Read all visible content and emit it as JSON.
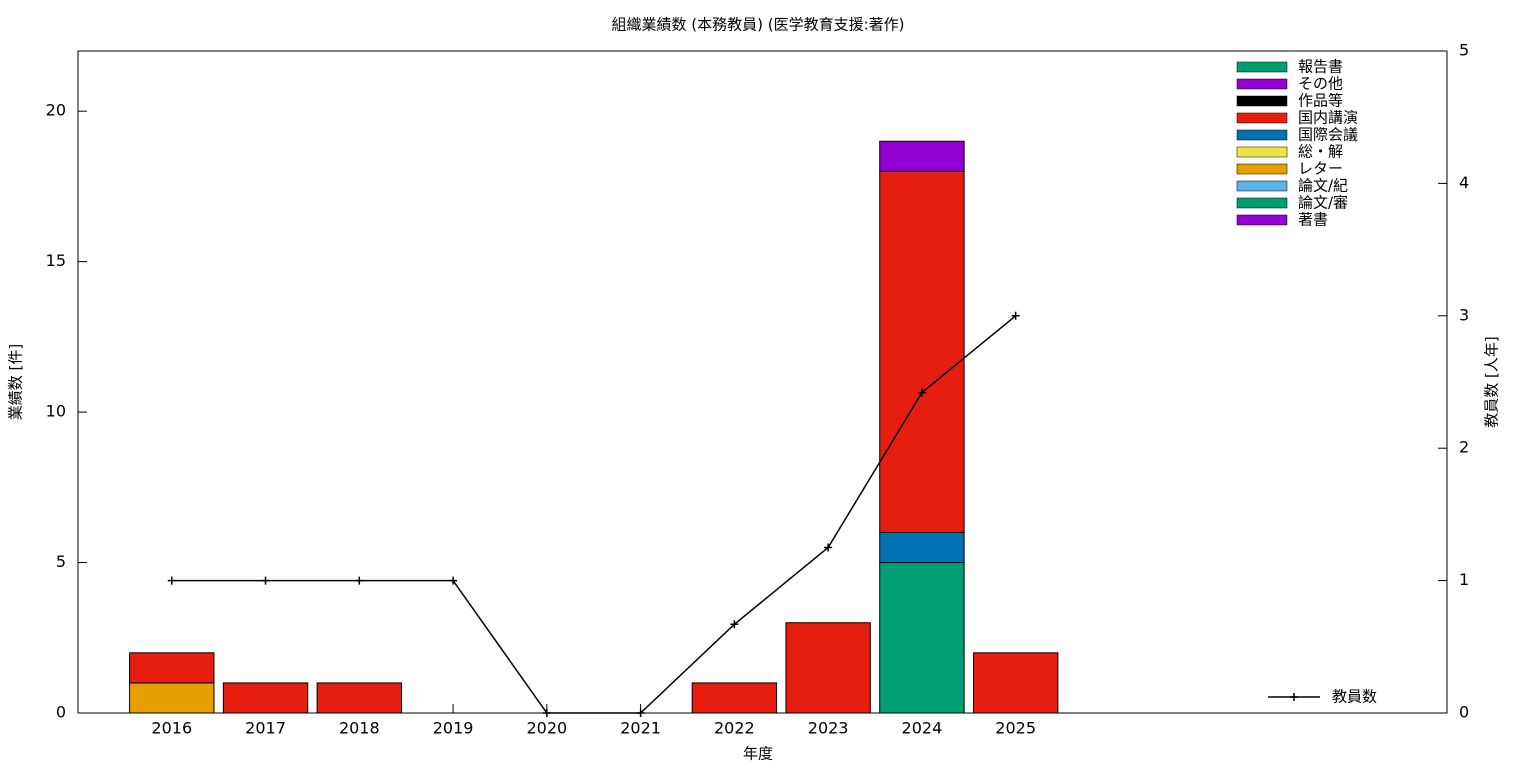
{
  "chart_data": {
    "type": "bar",
    "title": "組織業績数 (本務教員) (医学教育支援:著作)",
    "x_label": "年度",
    "y_label": "業績数 [件]",
    "y2_label": "教員数 [人年]",
    "x": [
      2016,
      2017,
      2018,
      2019,
      2020,
      2021,
      2022,
      2023,
      2024,
      2025
    ],
    "xlim": [
      2015,
      2029.6
    ],
    "xticks": [
      2016,
      2017,
      2018,
      2019,
      2020,
      2021,
      2022,
      2023,
      2024,
      2025
    ],
    "ylim": [
      0,
      22
    ],
    "yticks": [
      0,
      5,
      10,
      15,
      20
    ],
    "y2lim": [
      0,
      5
    ],
    "y2ticks": [
      0,
      1,
      2,
      3,
      4,
      5
    ],
    "legend": "upper right",
    "series": [
      {
        "name": "著書",
        "color": "#9400d3",
        "values": [
          0,
          0,
          0,
          0,
          0,
          0,
          0,
          0,
          0,
          0
        ]
      },
      {
        "name": "論文/審",
        "color": "#009e73",
        "values": [
          0,
          0,
          0,
          0,
          0,
          0,
          0,
          0,
          5,
          0
        ]
      },
      {
        "name": "論文/紀",
        "color": "#56b4e9",
        "values": [
          0,
          0,
          0,
          0,
          0,
          0,
          0,
          0,
          0,
          0
        ]
      },
      {
        "name": "レター",
        "color": "#e69f00",
        "values": [
          1,
          0,
          0,
          0,
          0,
          0,
          0,
          0,
          0,
          0
        ]
      },
      {
        "name": "総・解",
        "color": "#f0e442",
        "values": [
          0,
          0,
          0,
          0,
          0,
          0,
          0,
          0,
          0,
          0
        ]
      },
      {
        "name": "国際会議",
        "color": "#0072b2",
        "values": [
          0,
          0,
          0,
          0,
          0,
          0,
          0,
          0,
          1,
          0
        ]
      },
      {
        "name": "国内講演",
        "color": "#e51e10",
        "values": [
          1,
          1,
          1,
          0,
          0,
          0,
          1,
          3,
          12,
          2
        ]
      },
      {
        "name": "作品等",
        "color": "#000000",
        "values": [
          0,
          0,
          0,
          0,
          0,
          0,
          0,
          0,
          0,
          0
        ]
      },
      {
        "name": "その他",
        "color": "#9400d3",
        "values": [
          0,
          0,
          0,
          0,
          0,
          0,
          0,
          0,
          1,
          0
        ]
      },
      {
        "name": "報告書",
        "color": "#009e73",
        "values": [
          0,
          0,
          0,
          0,
          0,
          0,
          0,
          0,
          0,
          0
        ]
      },
      {
        "name": "教員数",
        "color": "#000000",
        "axis": "y2",
        "values": [
          1,
          1,
          1,
          1,
          0,
          0,
          0.67,
          1.25,
          2.42,
          3
        ]
      }
    ]
  }
}
